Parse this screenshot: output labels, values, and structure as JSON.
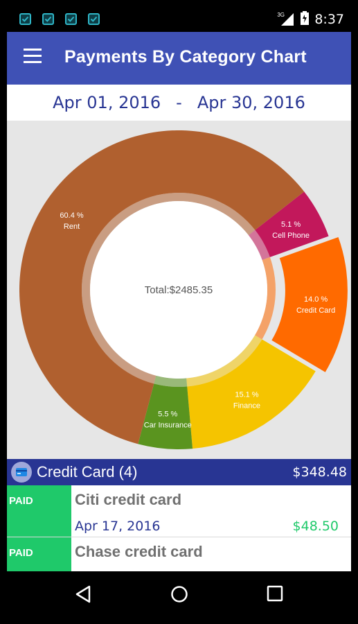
{
  "status_bar": {
    "time": "8:37",
    "network": "3G",
    "notification_icons": [
      "check-box-icon",
      "check-box-icon",
      "check-box-icon",
      "check-box-icon"
    ]
  },
  "app_bar": {
    "title": "Payments By Category Chart",
    "menu_icon": "hamburger-menu-icon",
    "color": "#3f51b5"
  },
  "date_range": {
    "start": "Apr 01, 2016",
    "separator": "-",
    "end": "Apr 30, 2016"
  },
  "chart_data": {
    "type": "pie",
    "style": "donut",
    "center_label": "Total:$2485.35",
    "slices": [
      {
        "label": "Cell Phone",
        "percent_text": "5.1 %",
        "value": 5.1,
        "color": "#c2185b"
      },
      {
        "label": "Credit Card",
        "percent_text": "14.0 %",
        "value": 14.0,
        "color": "#ff6a00",
        "selected": true
      },
      {
        "label": "Finance",
        "percent_text": "15.1 %",
        "value": 15.1,
        "color": "#f5c400"
      },
      {
        "label": "Car Insurance",
        "percent_text": "5.5 %",
        "value": 5.5,
        "color": "#5a941f"
      },
      {
        "label": "Rent",
        "percent_text": "60.4 %",
        "value": 60.4,
        "color": "#b0602f"
      }
    ]
  },
  "category": {
    "name": "Credit Card (4)",
    "amount": "$348.48",
    "icon": "credit-card-icon"
  },
  "payments": [
    {
      "status": "PAID",
      "name": "Citi credit card",
      "date": "Apr 17, 2016",
      "amount": "$48.50"
    },
    {
      "status": "PAID",
      "name": "Chase credit card",
      "date": "",
      "amount": ""
    }
  ],
  "nav_bar": {
    "buttons": [
      "back-icon",
      "home-icon",
      "recents-icon"
    ]
  }
}
